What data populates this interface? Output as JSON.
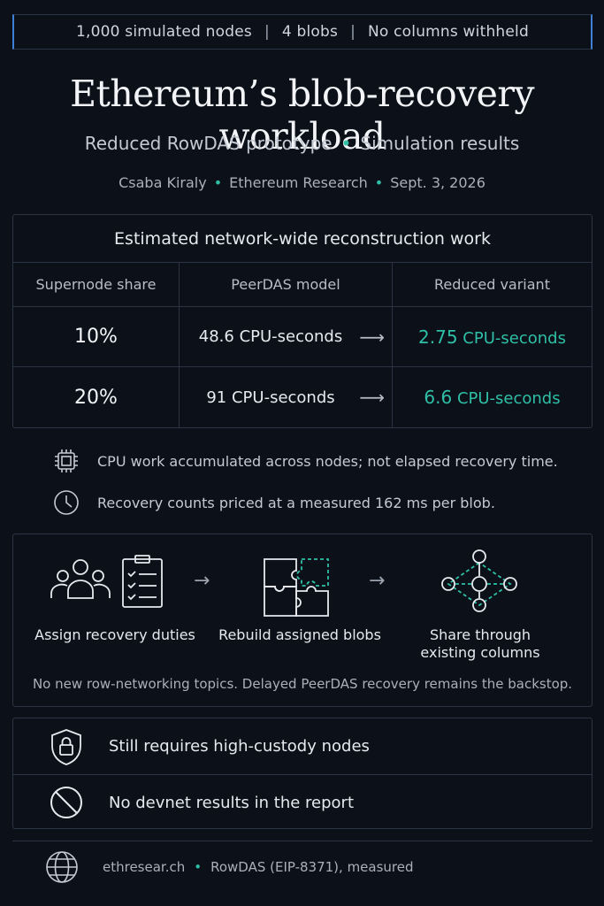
{
  "topbar": {
    "nodes": "1,000 simulated nodes",
    "sep1": "|",
    "blobs": "4 blobs",
    "sep2": "|",
    "columns": "No columns withheld"
  },
  "title": "Ethereum’s blob-recovery workload",
  "subtitle": {
    "left": "Reduced RowDAS prototype",
    "dot": "•",
    "right": "Simulation results"
  },
  "meta": {
    "author": "Csaba Kiraly",
    "org": "Ethereum Research",
    "date": "Sept. 3, 2026",
    "dot": "•"
  },
  "table": {
    "title": "Estimated network-wide reconstruction work",
    "headers": [
      "Supernode share",
      "PeerDAS model",
      "Reduced variant"
    ],
    "arrow": "⟶",
    "rows": [
      {
        "share": "10%",
        "peerdas": "48.6 CPU-seconds",
        "reduced_value": "2.75",
        "reduced_unit": "CPU-seconds"
      },
      {
        "share": "20%",
        "peerdas": "91 CPU-seconds",
        "reduced_value": "6.6",
        "reduced_unit": "CPU-seconds"
      }
    ]
  },
  "notes": [
    {
      "icon": "cpu-chip-icon",
      "text": "CPU work accumulated across nodes; not elapsed recovery time."
    },
    {
      "icon": "clock-icon",
      "text": "Recovery counts priced at a measured 162 ms per blob."
    }
  ],
  "flow": {
    "steps": [
      {
        "icon": "people-checklist-icon",
        "label": "Assign recovery duties"
      },
      {
        "icon": "puzzle-icon",
        "label": "Rebuild assigned blobs"
      },
      {
        "icon": "network-nodes-icon",
        "label_line1": "Share through",
        "label_line2": "existing columns"
      }
    ],
    "arrow": "→",
    "footnote": "No new row-networking topics. Delayed PeerDAS recovery remains the backstop."
  },
  "limits": [
    {
      "icon": "shield-lock-icon",
      "text": "Still requires high-custody nodes"
    },
    {
      "icon": "prohibited-icon",
      "text": "No devnet results in the report"
    }
  ],
  "footer": {
    "icon": "globe-icon",
    "site": "ethresear.ch",
    "dot": "•",
    "ref": "RowDAS (EIP-8371), measured"
  },
  "colors": {
    "accent": "#2fbfa6",
    "border": "#2b3442",
    "background": "#0c1119",
    "topbar_edge": "#3f7fd6"
  }
}
